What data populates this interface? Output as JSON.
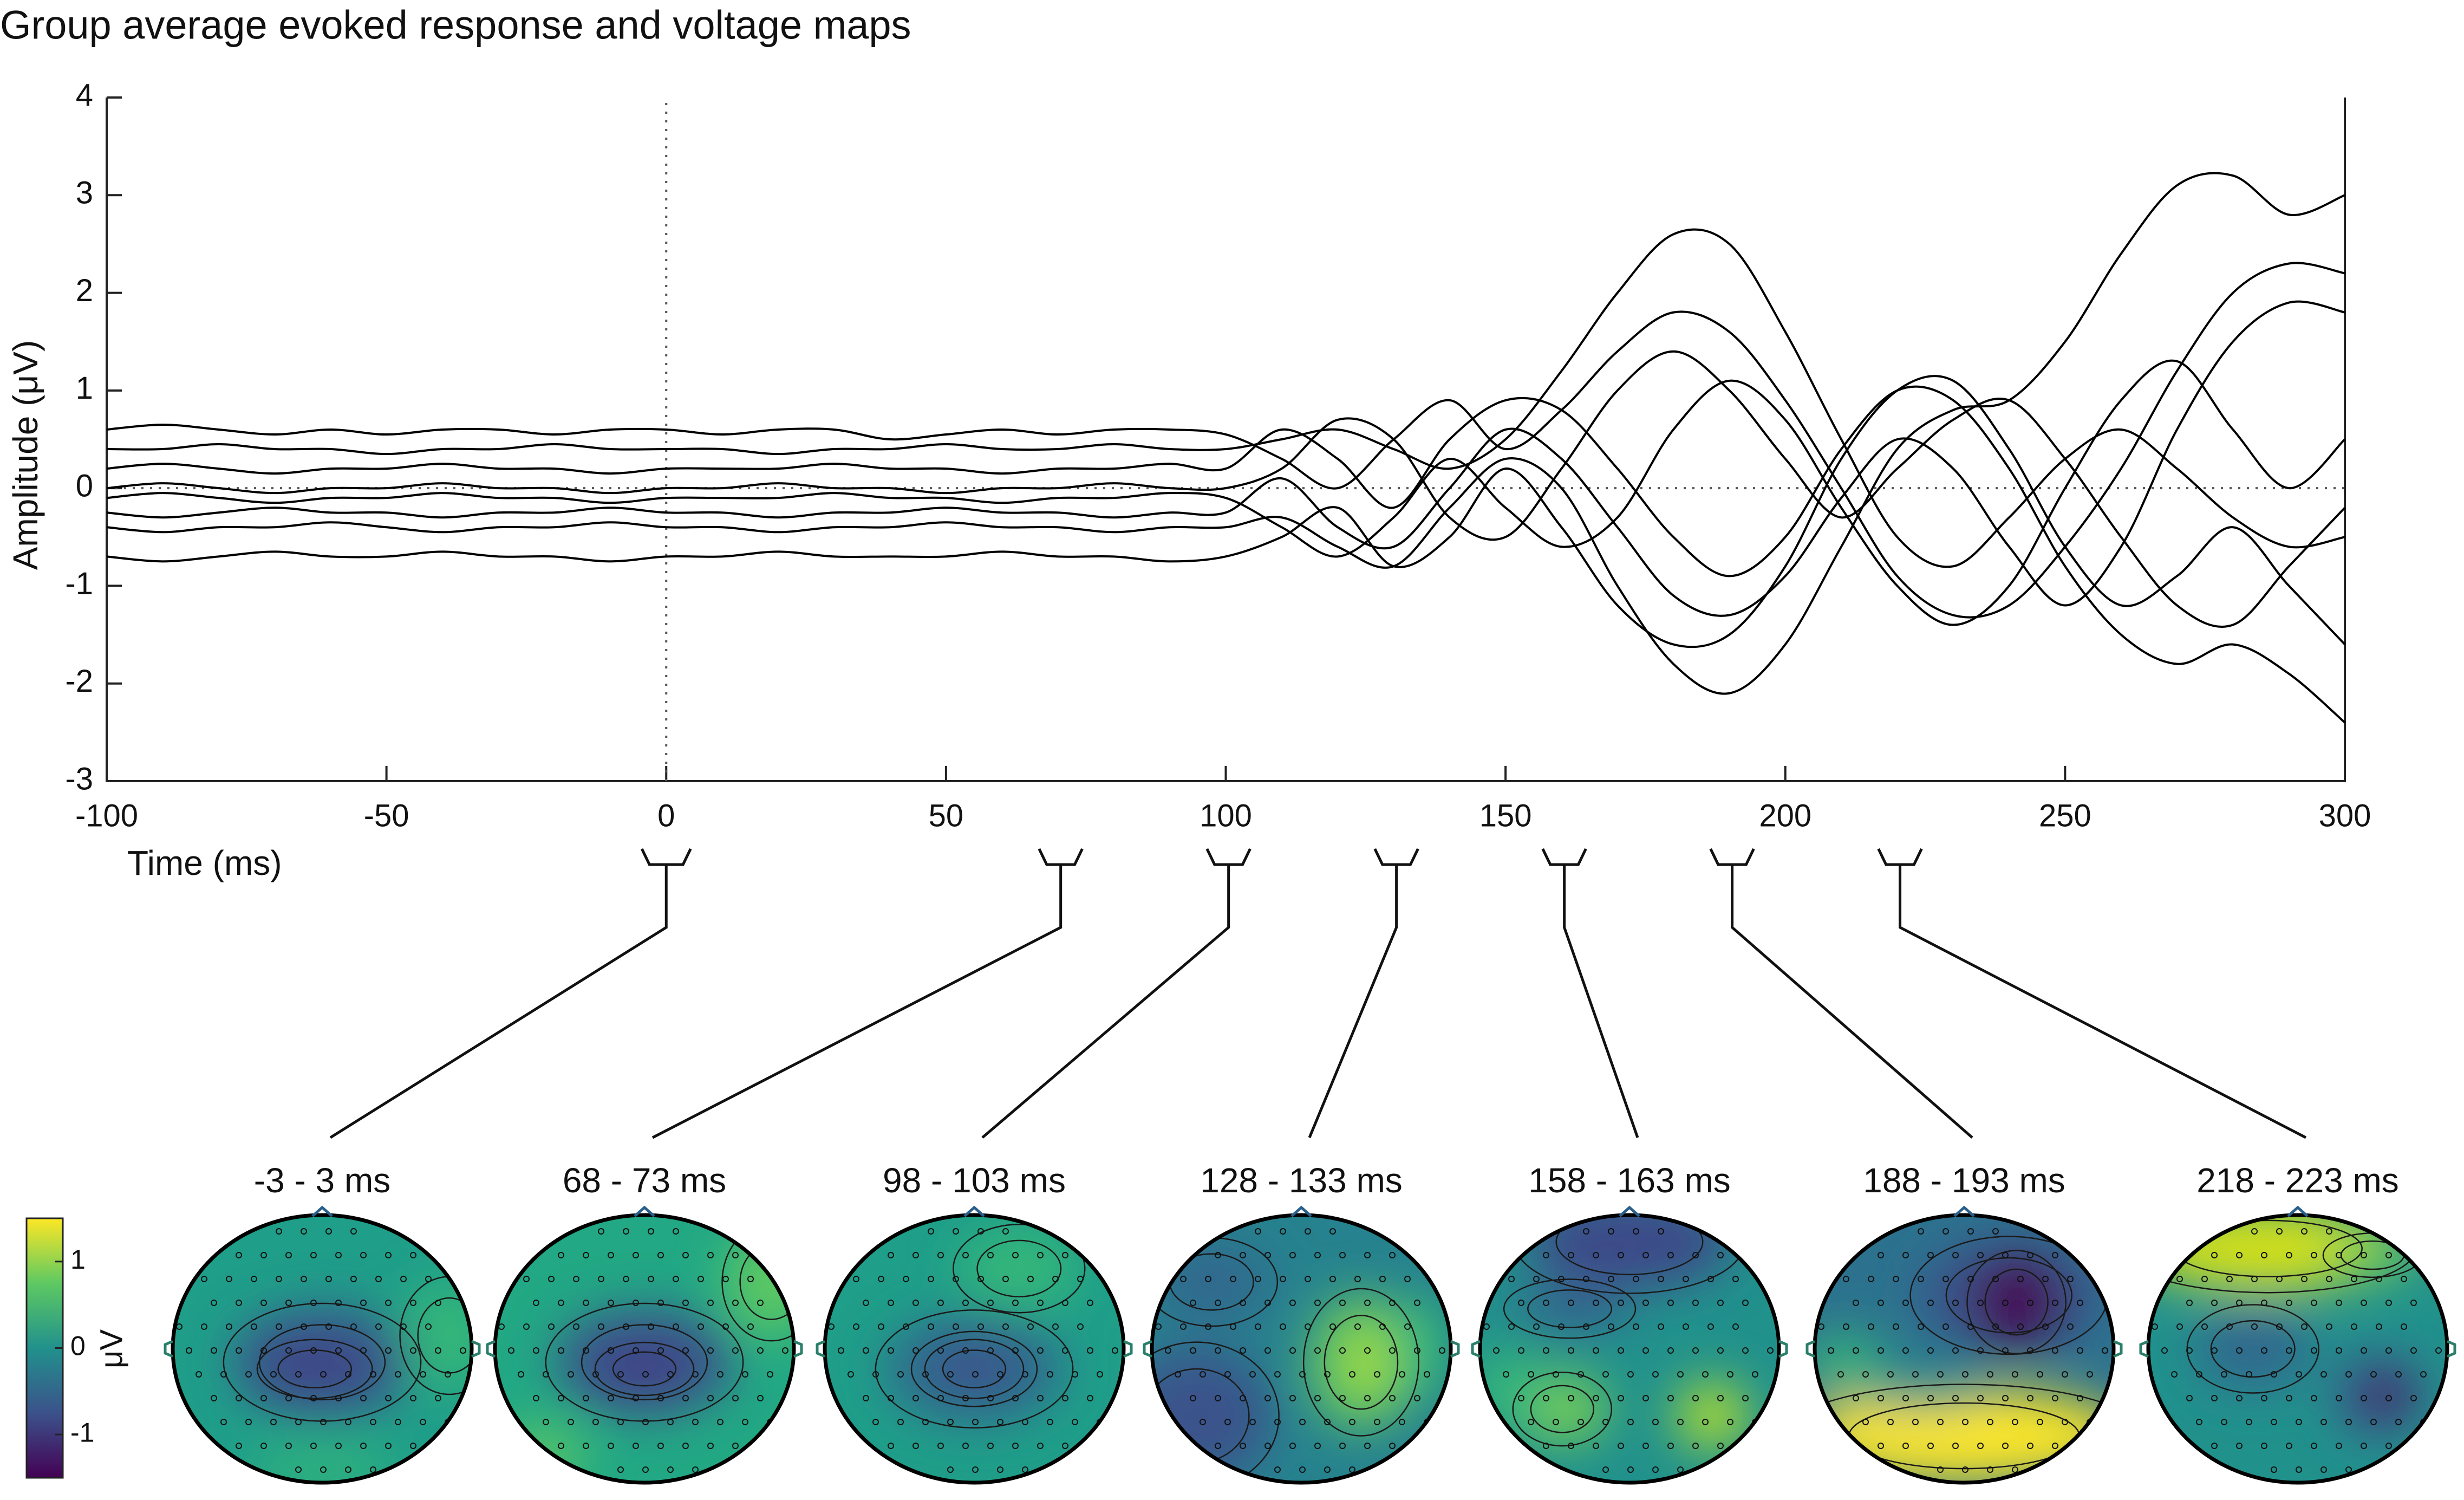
{
  "chart_data": {
    "type": "line",
    "title": "Group average evoked response and voltage maps",
    "x_label": "Time (ms)",
    "y_label": "Amplitude (μV)",
    "xlim": [
      -100,
      300
    ],
    "xticks": [
      -100,
      -50,
      0,
      50,
      100,
      150,
      200,
      250,
      300
    ],
    "ylim": [
      -3,
      4
    ],
    "yticks": [
      -3,
      -2,
      -1,
      0,
      1,
      2,
      3,
      4
    ],
    "vline": 0,
    "hline": 0,
    "x": [
      -100,
      -90,
      -80,
      -70,
      -60,
      -50,
      -40,
      -30,
      -20,
      -10,
      0,
      10,
      20,
      30,
      40,
      50,
      60,
      70,
      80,
      90,
      100,
      110,
      120,
      130,
      140,
      150,
      160,
      170,
      180,
      190,
      200,
      210,
      220,
      230,
      240,
      250,
      260,
      270,
      280,
      290,
      300
    ],
    "series": [
      {
        "color": "#000000",
        "values": [
          0.4,
          0.4,
          0.45,
          0.4,
          0.4,
          0.35,
          0.4,
          0.4,
          0.45,
          0.4,
          0.4,
          0.4,
          0.35,
          0.4,
          0.4,
          0.45,
          0.4,
          0.4,
          0.45,
          0.4,
          0.4,
          0.5,
          0.6,
          0.4,
          0.2,
          0.5,
          1.2,
          2.0,
          2.6,
          2.5,
          1.6,
          0.5,
          -0.5,
          -0.8,
          -0.3,
          0.3,
          0.6,
          0.2,
          -0.3,
          -0.6,
          -0.5
        ]
      },
      {
        "color": "#000000",
        "values": [
          -0.4,
          -0.45,
          -0.4,
          -0.4,
          -0.35,
          -0.4,
          -0.45,
          -0.4,
          -0.4,
          -0.35,
          -0.4,
          -0.4,
          -0.45,
          -0.4,
          -0.4,
          -0.35,
          -0.4,
          -0.4,
          -0.45,
          -0.4,
          -0.4,
          -0.3,
          -0.6,
          -0.8,
          -0.2,
          0.3,
          0.0,
          -1.0,
          -1.8,
          -2.1,
          -1.6,
          -0.6,
          0.4,
          0.8,
          0.9,
          1.5,
          2.4,
          3.1,
          3.2,
          2.8,
          3.0
        ]
      },
      {
        "color": "#000000",
        "values": [
          0.2,
          0.25,
          0.2,
          0.15,
          0.2,
          0.2,
          0.25,
          0.2,
          0.2,
          0.15,
          0.2,
          0.2,
          0.2,
          0.25,
          0.2,
          0.2,
          0.15,
          0.2,
          0.2,
          0.25,
          0.2,
          0.6,
          0.3,
          -0.2,
          0.5,
          0.9,
          0.8,
          0.2,
          -0.5,
          -0.9,
          -0.5,
          0.4,
          1.0,
          0.9,
          0.2,
          -0.8,
          -1.5,
          -1.8,
          -1.6,
          -1.9,
          -2.4
        ]
      },
      {
        "color": "#000000",
        "values": [
          -0.1,
          -0.05,
          -0.1,
          -0.15,
          -0.1,
          -0.1,
          -0.05,
          -0.1,
          -0.1,
          -0.15,
          -0.1,
          -0.1,
          -0.1,
          -0.05,
          -0.1,
          -0.1,
          -0.15,
          -0.1,
          -0.1,
          -0.05,
          -0.1,
          -0.4,
          -0.7,
          -0.3,
          0.3,
          -0.2,
          -0.6,
          -0.3,
          0.6,
          1.1,
          0.7,
          -0.2,
          -1.0,
          -1.4,
          -1.0,
          0.0,
          0.9,
          1.3,
          0.6,
          0.0,
          0.5
        ]
      },
      {
        "color": "#000000",
        "values": [
          0.6,
          0.65,
          0.6,
          0.55,
          0.6,
          0.55,
          0.6,
          0.6,
          0.55,
          0.6,
          0.6,
          0.55,
          0.6,
          0.6,
          0.5,
          0.55,
          0.6,
          0.55,
          0.6,
          0.6,
          0.55,
          0.3,
          0.0,
          0.5,
          0.9,
          0.4,
          0.8,
          1.4,
          1.8,
          1.6,
          0.9,
          0.0,
          -0.9,
          -1.3,
          -1.2,
          -0.6,
          0.2,
          1.2,
          2.0,
          2.3,
          2.2
        ]
      },
      {
        "color": "#000000",
        "values": [
          -0.7,
          -0.75,
          -0.7,
          -0.65,
          -0.7,
          -0.7,
          -0.65,
          -0.7,
          -0.7,
          -0.75,
          -0.7,
          -0.7,
          -0.65,
          -0.7,
          -0.7,
          -0.7,
          -0.65,
          -0.7,
          -0.7,
          -0.75,
          -0.7,
          -0.5,
          -0.2,
          -0.8,
          -0.5,
          0.2,
          -0.4,
          -1.2,
          -1.6,
          -1.5,
          -0.8,
          0.3,
          1.0,
          1.1,
          0.4,
          -0.6,
          -1.2,
          -0.9,
          -0.4,
          -1.0,
          -1.6
        ]
      },
      {
        "color": "#000000",
        "values": [
          0.0,
          0.05,
          0.0,
          -0.05,
          0.0,
          0.0,
          0.05,
          0.0,
          0.0,
          -0.05,
          0.0,
          0.0,
          0.05,
          0.0,
          0.0,
          -0.05,
          0.0,
          0.0,
          0.05,
          0.0,
          0.0,
          0.2,
          0.7,
          0.5,
          -0.3,
          -0.5,
          0.2,
          1.0,
          1.4,
          1.0,
          0.3,
          -0.3,
          0.2,
          0.7,
          0.9,
          0.3,
          -0.5,
          -1.2,
          -1.4,
          -0.8,
          -0.2
        ]
      },
      {
        "color": "#000000",
        "values": [
          -0.25,
          -0.3,
          -0.25,
          -0.2,
          -0.25,
          -0.25,
          -0.3,
          -0.25,
          -0.25,
          -0.2,
          -0.25,
          -0.25,
          -0.3,
          -0.25,
          -0.25,
          -0.2,
          -0.25,
          -0.25,
          -0.3,
          -0.25,
          -0.25,
          0.1,
          -0.4,
          -0.6,
          0.0,
          0.6,
          0.3,
          -0.4,
          -1.1,
          -1.3,
          -0.9,
          -0.1,
          0.5,
          0.2,
          -0.6,
          -1.2,
          -0.6,
          0.6,
          1.5,
          1.9,
          1.8
        ]
      }
    ],
    "topomaps": [
      {
        "label": "-3 - 3 ms",
        "window": [
          -3,
          3
        ]
      },
      {
        "label": "68 - 73 ms",
        "window": [
          68,
          73
        ]
      },
      {
        "label": "98 - 103 ms",
        "window": [
          98,
          103
        ]
      },
      {
        "label": "128 - 133 ms",
        "window": [
          128,
          133
        ]
      },
      {
        "label": "158 - 163 ms",
        "window": [
          158,
          163
        ]
      },
      {
        "label": "188 - 193 ms",
        "window": [
          188,
          193
        ]
      },
      {
        "label": "218 - 223 ms",
        "window": [
          218,
          223
        ]
      }
    ],
    "colorbar": {
      "label": "μV",
      "clim": [
        -1.5,
        1.5
      ],
      "ticks": [
        -1,
        0,
        1
      ],
      "colors": [
        "#440154",
        "#3b528b",
        "#21918c",
        "#5ec962",
        "#fde725"
      ]
    }
  }
}
